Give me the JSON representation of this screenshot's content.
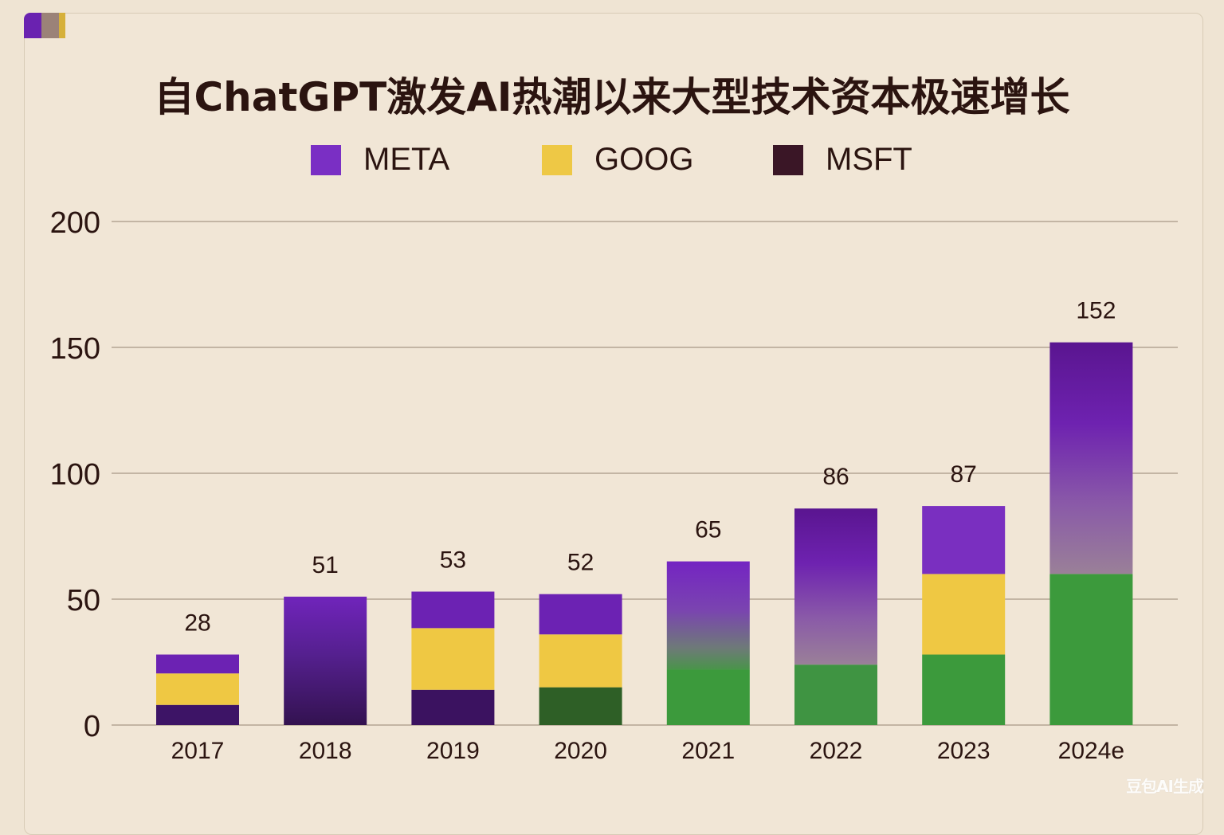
{
  "chart_data": {
    "type": "bar",
    "stacked": true,
    "title": "自ChatGPT激发AI热潮以来大型技术资本极速增长",
    "xlabel": "",
    "ylabel": "",
    "ylim": [
      0,
      200
    ],
    "yticks": [
      0,
      50,
      100,
      150,
      200
    ],
    "grid": true,
    "legend_position": "top",
    "categories": [
      "2017",
      "2018",
      "2019",
      "2020",
      "2021",
      "2022",
      "2023",
      "2024e"
    ],
    "totals": [
      28,
      51,
      53,
      52,
      65,
      86,
      87,
      152
    ],
    "total_labels": [
      "28",
      "51",
      "53",
      "52",
      "65",
      "86",
      "87",
      "152"
    ],
    "segments": [
      [
        {
          "series": "MSFT",
          "value": 8,
          "color": "#3d1466"
        },
        {
          "series": "GOOG",
          "value": 12.5,
          "color": "#efc843"
        },
        {
          "series": "META",
          "value": 7.5,
          "color": "#6c22b3"
        }
      ],
      [
        {
          "series": "META",
          "value": 51,
          "color": "gradient-purple-dark"
        }
      ],
      [
        {
          "series": "MSFT",
          "value": 14,
          "color": "#3b1260"
        },
        {
          "series": "GOOG",
          "value": 24.5,
          "color": "#efc843"
        },
        {
          "series": "META",
          "value": 14.5,
          "color": "#6c22b3"
        }
      ],
      [
        {
          "series": "MSFT",
          "value": 15,
          "color": "#2e5f26"
        },
        {
          "series": "GOOG",
          "value": 21,
          "color": "#efc843"
        },
        {
          "series": "META",
          "value": 16,
          "color": "#6c22b3"
        }
      ],
      [
        {
          "series": "MSFT",
          "value": 22,
          "color": "#3c9a3c"
        },
        {
          "series": "META",
          "value": 43,
          "color": "gradient-purple-fade"
        }
      ],
      [
        {
          "series": "MSFT",
          "value": 24,
          "color": "#3f9442"
        },
        {
          "series": "META",
          "value": 62,
          "color": "gradient-purple-fade"
        }
      ],
      [
        {
          "series": "MSFT",
          "value": 28,
          "color": "#3c9a3c"
        },
        {
          "series": "GOOG",
          "value": 32,
          "color": "#efc843"
        },
        {
          "series": "META",
          "value": 27,
          "color": "#7a2fc0"
        }
      ],
      [
        {
          "series": "MSFT",
          "value": 60,
          "color": "#3c9a3c"
        },
        {
          "series": "META",
          "value": 92,
          "color": "gradient-purple-fade"
        }
      ]
    ],
    "legend": [
      {
        "name": "META",
        "color": "#7a2fc4"
      },
      {
        "name": "GOOG",
        "color": "#eec845"
      },
      {
        "name": "MSFT",
        "color": "#3a1626"
      }
    ]
  },
  "decor": {
    "corner_colors": [
      "#6a22b0",
      "#9b8278",
      "#d6b03a"
    ],
    "watermark": "豆包AI生成"
  }
}
